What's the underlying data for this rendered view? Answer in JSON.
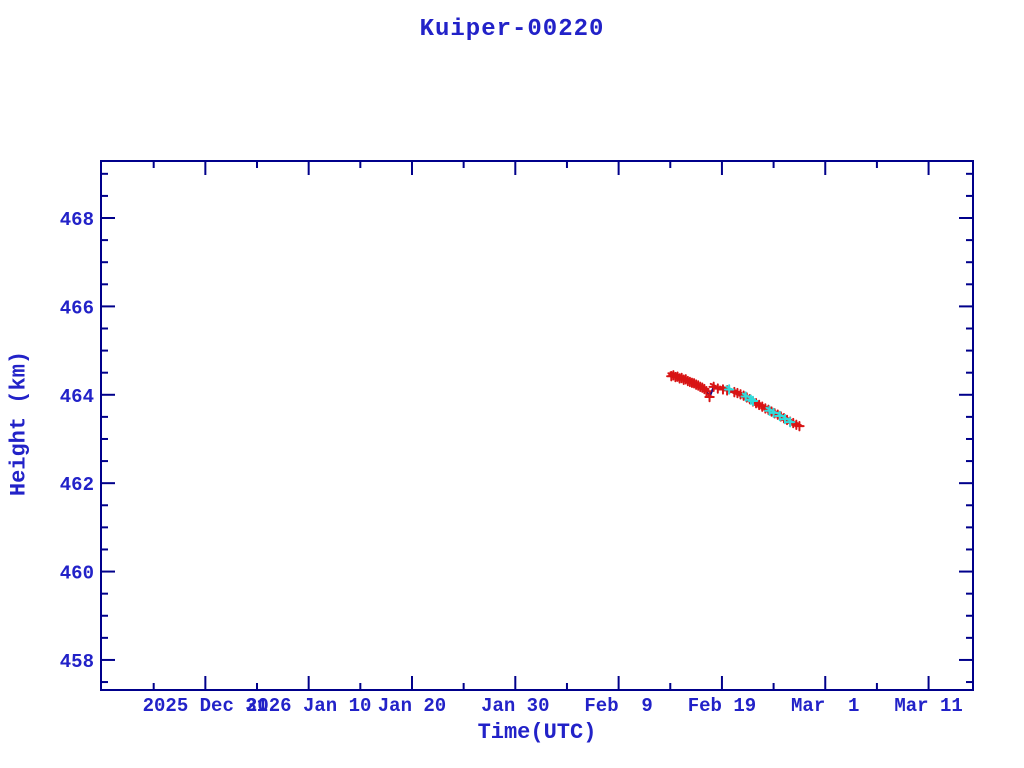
{
  "window": {
    "background": "#FFFFFF"
  },
  "chart_data": {
    "type": "scatter",
    "title": "Kuiper-00220",
    "xlabel": "Time(UTC)",
    "ylabel": "Height (km)",
    "x_unit": "days since 2025 Dec 31",
    "x_range": [
      -10.1,
      74.3
    ],
    "y_range": [
      457.32,
      469.29
    ],
    "x_minor_step": 5,
    "y_minor_step": 0.5,
    "grid": false,
    "legend": null,
    "x_ticks": [
      {
        "day": 0,
        "label": "2025 Dec 31"
      },
      {
        "day": 10,
        "label": "2026 Jan 10"
      },
      {
        "day": 20,
        "label": "Jan 20"
      },
      {
        "day": 30,
        "label": "Jan 30"
      },
      {
        "day": 40,
        "label": "Feb  9"
      },
      {
        "day": 50,
        "label": "Feb 19"
      },
      {
        "day": 60,
        "label": "Mar  1"
      },
      {
        "day": 70,
        "label": "Mar 11"
      }
    ],
    "y_ticks": [
      {
        "value": 458,
        "label": "458"
      },
      {
        "value": 460,
        "label": "460"
      },
      {
        "value": 462,
        "label": "462"
      },
      {
        "value": 464,
        "label": "464"
      },
      {
        "value": 466,
        "label": "466"
      },
      {
        "value": 468,
        "label": "468"
      }
    ],
    "colors": {
      "axis": "#00008B",
      "labels": "#2222C8",
      "line": "#00008B",
      "primary": "#D81414",
      "secondary": "#30DCDC"
    },
    "series": [
      {
        "name": "height-track",
        "marker": "asterisk",
        "color_key": "primary",
        "connect": true,
        "points": [
          [
            45.1,
            464.42
          ],
          [
            45.3,
            464.44
          ],
          [
            45.5,
            464.4
          ],
          [
            45.7,
            464.41
          ],
          [
            45.9,
            464.37
          ],
          [
            46.1,
            464.38
          ],
          [
            46.3,
            464.34
          ],
          [
            46.5,
            464.35
          ],
          [
            46.7,
            464.31
          ],
          [
            46.9,
            464.29
          ],
          [
            47.1,
            464.27
          ],
          [
            47.3,
            464.26
          ],
          [
            47.5,
            464.23
          ],
          [
            47.7,
            464.21
          ],
          [
            47.9,
            464.18
          ],
          [
            48.1,
            464.16
          ],
          [
            48.3,
            464.13
          ],
          [
            48.5,
            464.08
          ],
          [
            48.8,
            463.95
          ],
          [
            49.2,
            464.18
          ],
          [
            49.6,
            464.14
          ],
          [
            50.1,
            464.12
          ],
          [
            50.5,
            464.1
          ],
          [
            51.2,
            464.06
          ],
          [
            51.5,
            464.04
          ],
          [
            51.8,
            464.01
          ],
          [
            52.1,
            463.98
          ],
          [
            52.4,
            463.94
          ],
          [
            52.7,
            463.9
          ],
          [
            53.0,
            463.85
          ],
          [
            53.3,
            463.81
          ],
          [
            53.6,
            463.77
          ],
          [
            53.9,
            463.73
          ],
          [
            54.2,
            463.69
          ],
          [
            54.5,
            463.66
          ],
          [
            54.8,
            463.62
          ],
          [
            55.1,
            463.58
          ],
          [
            55.4,
            463.55
          ],
          [
            55.7,
            463.51
          ],
          [
            56.0,
            463.47
          ],
          [
            56.3,
            463.43
          ],
          [
            56.6,
            463.39
          ],
          [
            56.9,
            463.36
          ],
          [
            57.2,
            463.32
          ],
          [
            57.5,
            463.29
          ]
        ]
      },
      {
        "name": "flagged-points",
        "marker": "asterisk",
        "color_key": "secondary",
        "connect": false,
        "points": [
          [
            50.7,
            464.12
          ],
          [
            52.3,
            463.96
          ],
          [
            52.8,
            463.89
          ],
          [
            53.0,
            463.86
          ],
          [
            54.6,
            463.64
          ],
          [
            55.0,
            463.59
          ],
          [
            55.6,
            463.52
          ],
          [
            56.1,
            463.45
          ],
          [
            56.6,
            463.38
          ]
        ]
      }
    ]
  }
}
